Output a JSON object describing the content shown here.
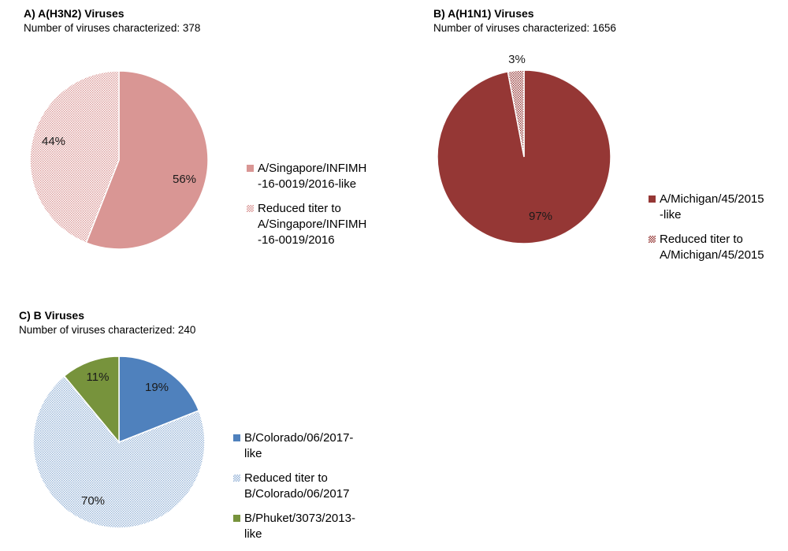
{
  "chart_data": [
    {
      "type": "pie",
      "title": "A) A(H3N2) Viruses",
      "subtitle": "Number of viruses characterized: 378",
      "slices": [
        {
          "label": "A/Singapore/INFIMH\n-16-0019/2016-like",
          "value": 56,
          "data_label": "56%",
          "color": "#d99694",
          "pattern": "solid"
        },
        {
          "label": "Reduced titer to\nA/Singapore/INFIMH\n-16-0019/2016",
          "value": 44,
          "data_label": "44%",
          "color": "#d99694",
          "pattern": "dots"
        }
      ]
    },
    {
      "type": "pie",
      "title": "B) A(H1N1) Viruses",
      "subtitle": "Number of viruses characterized: 1656",
      "slices": [
        {
          "label": "A/Michigan/45/2015\n-like",
          "value": 97,
          "data_label": "97%",
          "color": "#953735",
          "pattern": "solid"
        },
        {
          "label": "Reduced titer to\nA/Michigan/45/2015",
          "value": 3,
          "data_label": "3%",
          "color": "#953735",
          "pattern": "dots"
        }
      ]
    },
    {
      "type": "pie",
      "title": "C) B Viruses",
      "subtitle": "Number of viruses characterized: 240",
      "slices": [
        {
          "label": "B/Colorado/06/2017-\nlike",
          "value": 19,
          "data_label": "19%",
          "color": "#4f81bd",
          "pattern": "solid"
        },
        {
          "label": "Reduced titer to\nB/Colorado/06/2017",
          "value": 70,
          "data_label": "70%",
          "color": "#95b3d7",
          "pattern": "dots"
        },
        {
          "label": "B/Phuket/3073/2013-\nlike",
          "value": 11,
          "data_label": "11%",
          "color": "#77933c",
          "pattern": "solid"
        }
      ]
    }
  ]
}
